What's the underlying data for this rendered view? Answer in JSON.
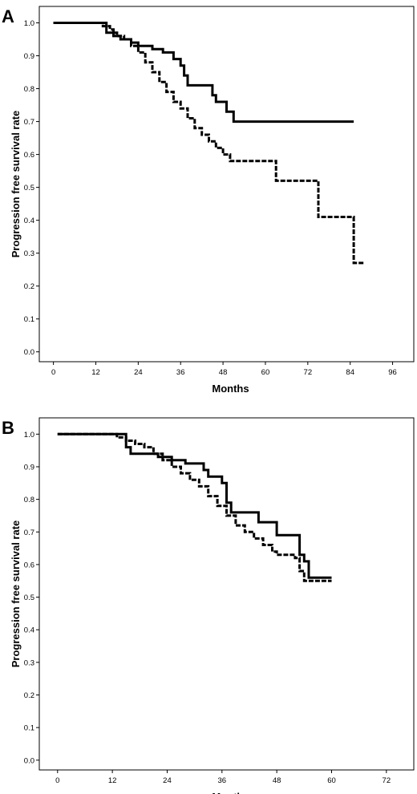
{
  "chart_data": [
    {
      "type": "line",
      "panel_label": "A",
      "xlabel": "Months",
      "ylabel": "Progression free survival rate",
      "xlim": [
        -4,
        102
      ],
      "ylim": [
        -0.03,
        1.05
      ],
      "x_ticks": [
        "0",
        "12",
        "24",
        "36",
        "48",
        "60",
        "72",
        "84",
        "96"
      ],
      "y_ticks": [
        "0.0",
        "0.1",
        "0.2",
        "0.3",
        "0.4",
        "0.5",
        "0.6",
        "0.7",
        "0.8",
        "0.9",
        "1.0"
      ],
      "series": [
        {
          "style": "solid",
          "points": [
            [
              0,
              1.0
            ],
            [
              14,
              1.0
            ],
            [
              15,
              0.97
            ],
            [
              17,
              0.96
            ],
            [
              19,
              0.95
            ],
            [
              22,
              0.94
            ],
            [
              24,
              0.93
            ],
            [
              28,
              0.92
            ],
            [
              31,
              0.91
            ],
            [
              34,
              0.89
            ],
            [
              36,
              0.87
            ],
            [
              37,
              0.84
            ],
            [
              38,
              0.81
            ],
            [
              45,
              0.78
            ],
            [
              46,
              0.76
            ],
            [
              48,
              0.76
            ],
            [
              49,
              0.73
            ],
            [
              51,
              0.7
            ],
            [
              85,
              0.7
            ]
          ]
        },
        {
          "style": "dashed",
          "points": [
            [
              0,
              1.0
            ],
            [
              12,
              1.0
            ],
            [
              14,
              0.99
            ],
            [
              16,
              0.98
            ],
            [
              17,
              0.97
            ],
            [
              18,
              0.96
            ],
            [
              20,
              0.95
            ],
            [
              22,
              0.93
            ],
            [
              24,
              0.91
            ],
            [
              26,
              0.88
            ],
            [
              28,
              0.85
            ],
            [
              30,
              0.82
            ],
            [
              32,
              0.79
            ],
            [
              34,
              0.76
            ],
            [
              36,
              0.74
            ],
            [
              38,
              0.71
            ],
            [
              40,
              0.68
            ],
            [
              42,
              0.66
            ],
            [
              44,
              0.64
            ],
            [
              46,
              0.62
            ],
            [
              48,
              0.6
            ],
            [
              50,
              0.58
            ],
            [
              54,
              0.58
            ],
            [
              56,
              0.58
            ],
            [
              57,
              0.58
            ],
            [
              62,
              0.58
            ],
            [
              63,
              0.52
            ],
            [
              66,
              0.52
            ],
            [
              69,
              0.52
            ],
            [
              70,
              0.52
            ],
            [
              74,
              0.52
            ],
            [
              75,
              0.41
            ],
            [
              80,
              0.41
            ],
            [
              84,
              0.41
            ],
            [
              85,
              0.27
            ],
            [
              88,
              0.27
            ]
          ]
        }
      ]
    },
    {
      "type": "line",
      "panel_label": "B",
      "xlabel": "Months",
      "ylabel": "Progression free survival rate",
      "xlim": [
        -4,
        78
      ],
      "ylim": [
        -0.03,
        1.05
      ],
      "x_ticks": [
        "0",
        "12",
        "24",
        "36",
        "48",
        "60",
        "72"
      ],
      "y_ticks": [
        "0.0",
        "0.1",
        "0.2",
        "0.3",
        "0.4",
        "0.5",
        "0.6",
        "0.7",
        "0.8",
        "0.9",
        "1.0"
      ],
      "series": [
        {
          "style": "solid",
          "points": [
            [
              0,
              1.0
            ],
            [
              14,
              1.0
            ],
            [
              15,
              0.96
            ],
            [
              16,
              0.94
            ],
            [
              21,
              0.94
            ],
            [
              22,
              0.93
            ],
            [
              25,
              0.92
            ],
            [
              27,
              0.92
            ],
            [
              28,
              0.91
            ],
            [
              31,
              0.91
            ],
            [
              32,
              0.89
            ],
            [
              33,
              0.87
            ],
            [
              35,
              0.87
            ],
            [
              36,
              0.85
            ],
            [
              37,
              0.79
            ],
            [
              38,
              0.76
            ],
            [
              43,
              0.76
            ],
            [
              44,
              0.73
            ],
            [
              47,
              0.73
            ],
            [
              48,
              0.69
            ],
            [
              52,
              0.69
            ],
            [
              53,
              0.63
            ],
            [
              54,
              0.61
            ],
            [
              55,
              0.56
            ],
            [
              60,
              0.56
            ]
          ]
        },
        {
          "style": "dashed",
          "points": [
            [
              0,
              1.0
            ],
            [
              12,
              1.0
            ],
            [
              13,
              0.99
            ],
            [
              15,
              0.98
            ],
            [
              17,
              0.97
            ],
            [
              19,
              0.96
            ],
            [
              21,
              0.94
            ],
            [
              23,
              0.92
            ],
            [
              25,
              0.9
            ],
            [
              27,
              0.88
            ],
            [
              29,
              0.86
            ],
            [
              31,
              0.84
            ],
            [
              33,
              0.81
            ],
            [
              35,
              0.78
            ],
            [
              37,
              0.75
            ],
            [
              39,
              0.72
            ],
            [
              41,
              0.7
            ],
            [
              43,
              0.68
            ],
            [
              45,
              0.66
            ],
            [
              47,
              0.64
            ],
            [
              48,
              0.63
            ],
            [
              51,
              0.63
            ],
            [
              52,
              0.62
            ],
            [
              53,
              0.58
            ],
            [
              54,
              0.55
            ],
            [
              60,
              0.55
            ]
          ]
        }
      ]
    }
  ]
}
